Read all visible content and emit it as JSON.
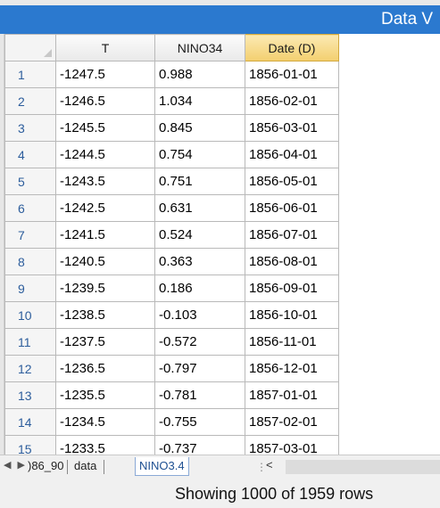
{
  "window": {
    "title": "Data V"
  },
  "grid": {
    "columns": [
      "T",
      "NINO34",
      "Date (D)"
    ],
    "selected_column": "Date (D)",
    "rows": [
      [
        "1",
        "-1247.5",
        "0.988",
        "1856-01-01"
      ],
      [
        "2",
        "-1246.5",
        "1.034",
        "1856-02-01"
      ],
      [
        "3",
        "-1245.5",
        "0.845",
        "1856-03-01"
      ],
      [
        "4",
        "-1244.5",
        "0.754",
        "1856-04-01"
      ],
      [
        "5",
        "-1243.5",
        "0.751",
        "1856-05-01"
      ],
      [
        "6",
        "-1242.5",
        "0.631",
        "1856-06-01"
      ],
      [
        "7",
        "-1241.5",
        "0.524",
        "1856-07-01"
      ],
      [
        "8",
        "-1240.5",
        "0.363",
        "1856-08-01"
      ],
      [
        "9",
        "-1239.5",
        "0.186",
        "1856-09-01"
      ],
      [
        "10",
        "-1238.5",
        "-0.103",
        "1856-10-01"
      ],
      [
        "11",
        "-1237.5",
        "-0.572",
        "1856-11-01"
      ],
      [
        "12",
        "-1236.5",
        "-0.797",
        "1856-12-01"
      ],
      [
        "13",
        "-1235.5",
        "-0.781",
        "1857-01-01"
      ],
      [
        "14",
        "-1234.5",
        "-0.755",
        "1857-02-01"
      ],
      [
        "15",
        "-1233.5",
        "-0.737",
        "1857-03-01"
      ]
    ]
  },
  "sheet_tabs": {
    "nav": "◀ ▶",
    "items": [
      ")86_90",
      "data",
      "NINO3.4"
    ],
    "active": "NINO3.4"
  },
  "hscroll": {
    "splitter": "⋮",
    "left_arrow": "<"
  },
  "status": {
    "text": "Showing 1000 of 1959 rows"
  },
  "colors": {
    "title_blue": "#2b79cf",
    "row_number": "#2c5d9c",
    "selected_header": "#f3cf6f"
  }
}
